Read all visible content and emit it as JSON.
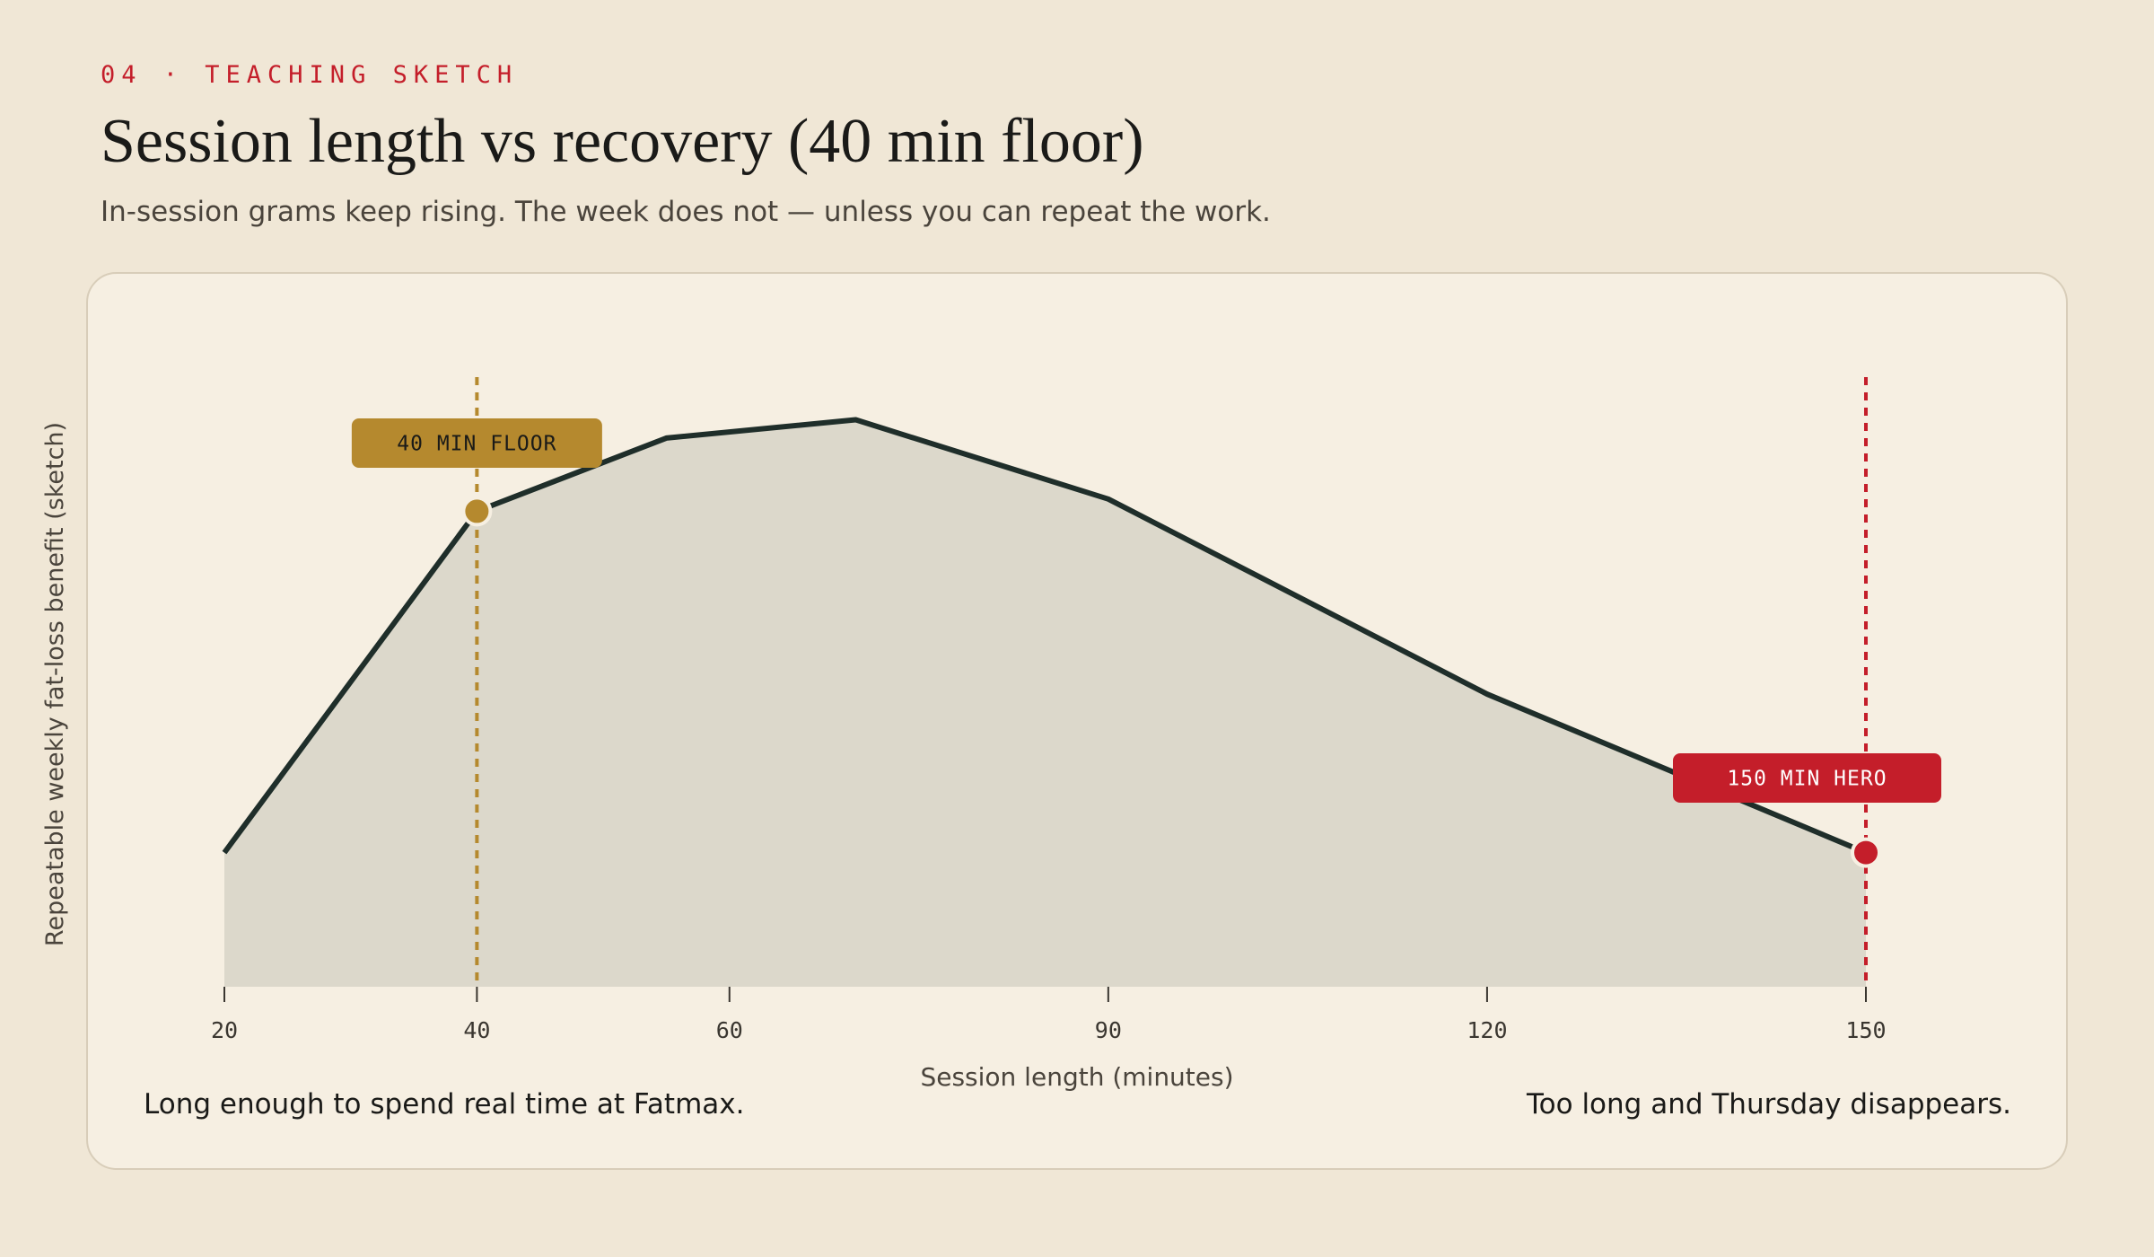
{
  "header": {
    "eyebrow": "04 · TEACHING SKETCH",
    "title": "Session length vs recovery (40 min floor)",
    "subtitle": "In-session grams keep rising. The week does not — unless you can repeat the work."
  },
  "notes": {
    "left": "Long enough to spend real time at Fatmax.",
    "right": "Too long and Thursday disappears."
  },
  "colors": {
    "line": "#1f2e2a",
    "area": "#dcd8cb",
    "floor": "#b5892e",
    "hero": "#c41e2a"
  },
  "chart_data": {
    "type": "area",
    "title": "Session length vs recovery (40 min floor)",
    "xlabel": "Session length (minutes)",
    "ylabel": "Repeatable weekly fat-loss benefit (sketch)",
    "x_ticks": [
      20,
      40,
      60,
      90,
      120,
      150
    ],
    "xlim": [
      20,
      150
    ],
    "ylim": [
      0,
      1
    ],
    "y_ticks_shown": false,
    "grid": false,
    "series": [
      {
        "x": [
          20,
          40,
          55,
          70,
          90,
          120,
          150
        ],
        "y": [
          0.22,
          0.78,
          0.9,
          0.93,
          0.8,
          0.48,
          0.22
        ]
      }
    ],
    "markers": [
      {
        "x": 40,
        "y": 0.78,
        "label": "40 MIN FLOOR",
        "color": "#b5892e"
      },
      {
        "x": 150,
        "y": 0.22,
        "label": "150 MIN HERO",
        "color": "#c41e2a"
      }
    ]
  }
}
